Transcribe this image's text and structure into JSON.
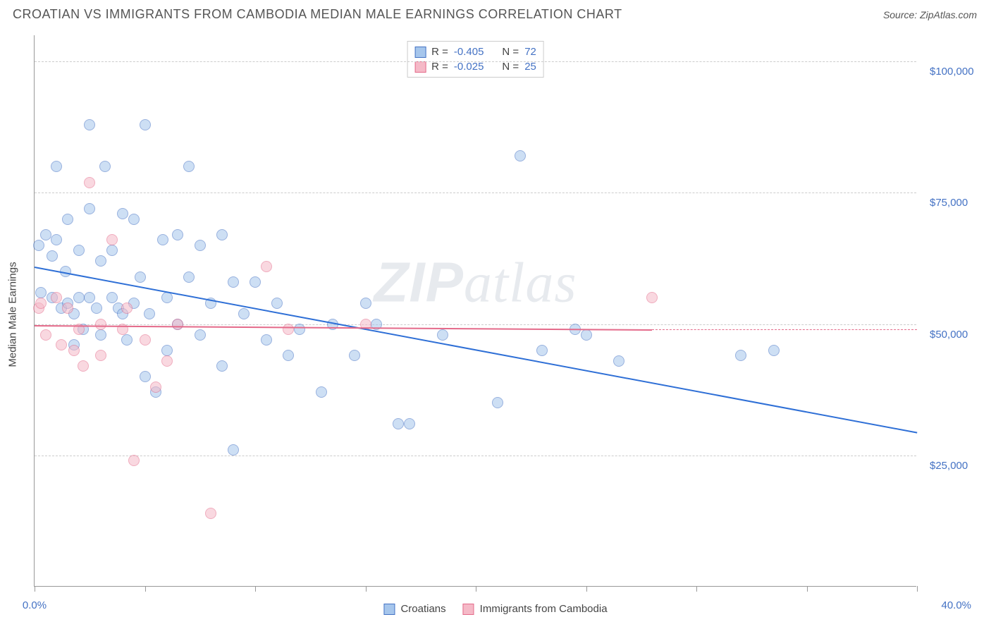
{
  "header": {
    "title": "CROATIAN VS IMMIGRANTS FROM CAMBODIA MEDIAN MALE EARNINGS CORRELATION CHART",
    "source_label": "Source: ",
    "source_value": "ZipAtlas.com"
  },
  "chart": {
    "type": "scatter",
    "ylabel": "Median Male Earnings",
    "background_color": "#ffffff",
    "grid_color": "#cccccc",
    "axis_color": "#999999",
    "text_color": "#444444",
    "value_color": "#4472c4",
    "xlim": [
      0,
      40
    ],
    "ylim": [
      0,
      105000
    ],
    "xtick_label_left": "0.0%",
    "xtick_label_right": "40.0%",
    "ytick_positions": [
      25000,
      50000,
      75000,
      100000
    ],
    "ytick_labels": [
      "$25,000",
      "$50,000",
      "$75,000",
      "$100,000"
    ],
    "xtick_positions": [
      0,
      5,
      10,
      15,
      20,
      25,
      30,
      35,
      40
    ],
    "point_radius": 8,
    "series": [
      {
        "name": "Croatians",
        "fill_color": "#a6c6ec",
        "stroke_color": "#4472c4",
        "fill_opacity": 0.55,
        "R_label": "R =",
        "R": "-0.405",
        "N_label": "N =",
        "N": "72",
        "trend": {
          "x1": 0,
          "y1": 61000,
          "x2": 40,
          "y2": 29500,
          "color": "#2e6fd6"
        },
        "points": [
          [
            0.2,
            65000
          ],
          [
            0.3,
            56000
          ],
          [
            0.5,
            67000
          ],
          [
            0.8,
            63000
          ],
          [
            0.8,
            55000
          ],
          [
            1.0,
            80000
          ],
          [
            1.0,
            66000
          ],
          [
            1.2,
            53000
          ],
          [
            1.4,
            60000
          ],
          [
            1.5,
            70000
          ],
          [
            1.5,
            54000
          ],
          [
            1.8,
            52000
          ],
          [
            1.8,
            46000
          ],
          [
            2.0,
            64000
          ],
          [
            2.0,
            55000
          ],
          [
            2.2,
            49000
          ],
          [
            2.5,
            88000
          ],
          [
            2.5,
            72000
          ],
          [
            2.5,
            55000
          ],
          [
            2.8,
            53000
          ],
          [
            3.0,
            62000
          ],
          [
            3.0,
            48000
          ],
          [
            3.2,
            80000
          ],
          [
            3.5,
            55000
          ],
          [
            3.5,
            64000
          ],
          [
            3.8,
            53000
          ],
          [
            4.0,
            71000
          ],
          [
            4.0,
            52000
          ],
          [
            4.2,
            47000
          ],
          [
            4.5,
            70000
          ],
          [
            4.5,
            54000
          ],
          [
            4.8,
            59000
          ],
          [
            5.0,
            88000
          ],
          [
            5.0,
            40000
          ],
          [
            5.2,
            52000
          ],
          [
            5.5,
            37000
          ],
          [
            5.8,
            66000
          ],
          [
            6.0,
            55000
          ],
          [
            6.0,
            45000
          ],
          [
            6.5,
            67000
          ],
          [
            6.5,
            50000
          ],
          [
            7.0,
            80000
          ],
          [
            7.0,
            59000
          ],
          [
            7.5,
            48000
          ],
          [
            7.5,
            65000
          ],
          [
            8.0,
            54000
          ],
          [
            8.5,
            67000
          ],
          [
            8.5,
            42000
          ],
          [
            9.0,
            58000
          ],
          [
            9.0,
            26000
          ],
          [
            9.5,
            52000
          ],
          [
            10.0,
            58000
          ],
          [
            10.5,
            47000
          ],
          [
            11.0,
            54000
          ],
          [
            11.5,
            44000
          ],
          [
            12.0,
            49000
          ],
          [
            13.0,
            37000
          ],
          [
            13.5,
            50000
          ],
          [
            14.5,
            44000
          ],
          [
            15.0,
            54000
          ],
          [
            15.5,
            50000
          ],
          [
            16.5,
            31000
          ],
          [
            17.0,
            31000
          ],
          [
            18.5,
            48000
          ],
          [
            21.0,
            35000
          ],
          [
            22.0,
            82000
          ],
          [
            23.0,
            45000
          ],
          [
            24.5,
            49000
          ],
          [
            25.0,
            48000
          ],
          [
            26.5,
            43000
          ],
          [
            32.0,
            44000
          ],
          [
            33.5,
            45000
          ]
        ]
      },
      {
        "name": "Immigrants from Cambodia",
        "fill_color": "#f5b9c7",
        "stroke_color": "#e46a8a",
        "fill_opacity": 0.55,
        "R_label": "R =",
        "R": "-0.025",
        "N_label": "N =",
        "N": "25",
        "trend": {
          "x1": 0,
          "y1": 49800,
          "x2": 28,
          "y2": 49000,
          "dashed_to": 40,
          "color": "#e46a8a"
        },
        "points": [
          [
            0.2,
            53000
          ],
          [
            0.3,
            54000
          ],
          [
            0.5,
            48000
          ],
          [
            1.0,
            55000
          ],
          [
            1.2,
            46000
          ],
          [
            1.5,
            53000
          ],
          [
            1.8,
            45000
          ],
          [
            2.0,
            49000
          ],
          [
            2.2,
            42000
          ],
          [
            2.5,
            77000
          ],
          [
            3.0,
            50000
          ],
          [
            3.0,
            44000
          ],
          [
            3.5,
            66000
          ],
          [
            4.0,
            49000
          ],
          [
            4.2,
            53000
          ],
          [
            4.5,
            24000
          ],
          [
            5.0,
            47000
          ],
          [
            5.5,
            38000
          ],
          [
            6.0,
            43000
          ],
          [
            6.5,
            50000
          ],
          [
            8.0,
            14000
          ],
          [
            10.5,
            61000
          ],
          [
            11.5,
            49000
          ],
          [
            15.0,
            50000
          ],
          [
            28.0,
            55000
          ]
        ]
      }
    ],
    "watermark": {
      "part1": "ZIP",
      "part2": "atlas"
    }
  }
}
